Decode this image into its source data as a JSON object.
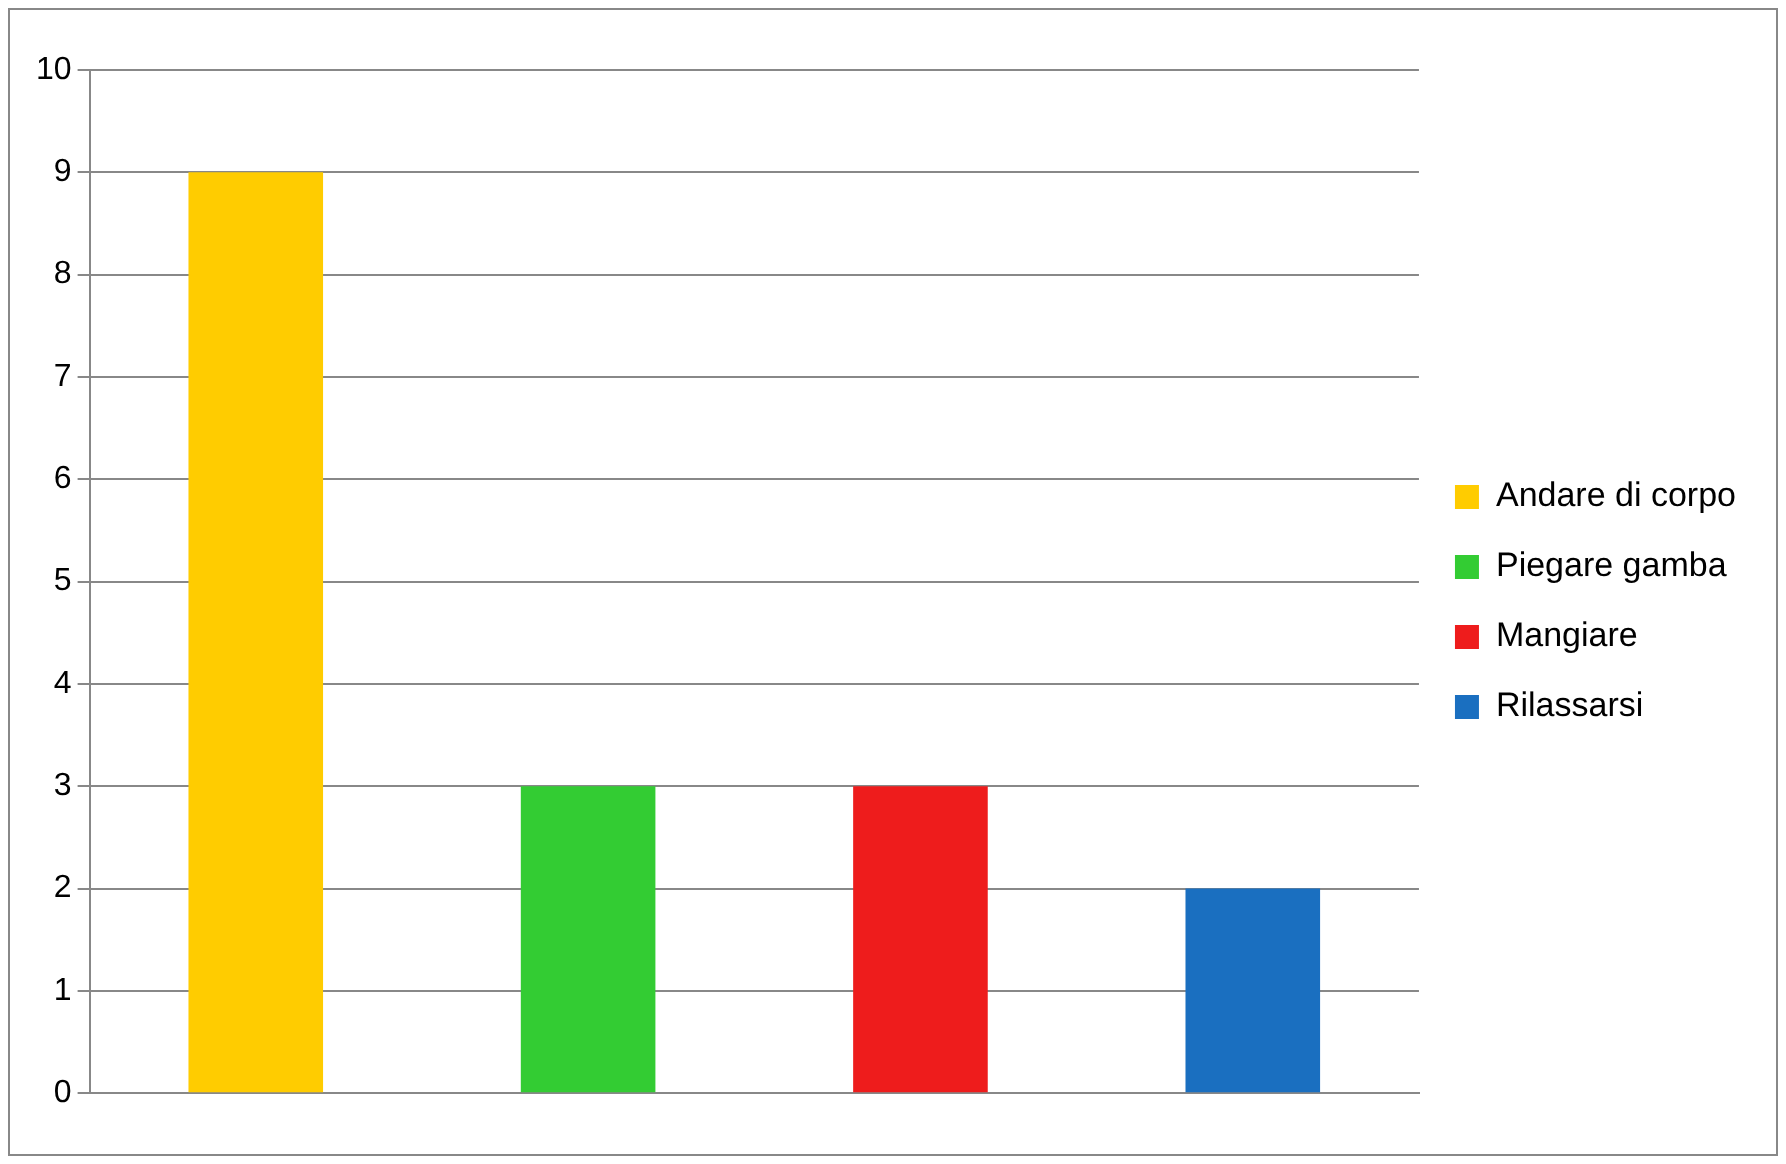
{
  "chart_data": {
    "type": "bar",
    "categories": [
      null,
      null,
      null,
      null
    ],
    "series": [
      {
        "name": "Andare di corpo",
        "color": "#ffcc00",
        "values": [
          9,
          null,
          null,
          null
        ]
      },
      {
        "name": "Piegare gamba",
        "color": "#33cc33",
        "values": [
          null,
          3,
          null,
          null
        ]
      },
      {
        "name": "Mangiare",
        "color": "#ee1c1c",
        "values": [
          null,
          null,
          3,
          null
        ]
      },
      {
        "name": "Rilassarsi",
        "color": "#1a6fc0",
        "values": [
          null,
          null,
          null,
          2
        ]
      }
    ],
    "ylim": [
      0,
      10
    ],
    "yticks": [
      0,
      1,
      2,
      3,
      4,
      5,
      6,
      7,
      8,
      9,
      10
    ],
    "grid": "y",
    "legend": "right"
  }
}
